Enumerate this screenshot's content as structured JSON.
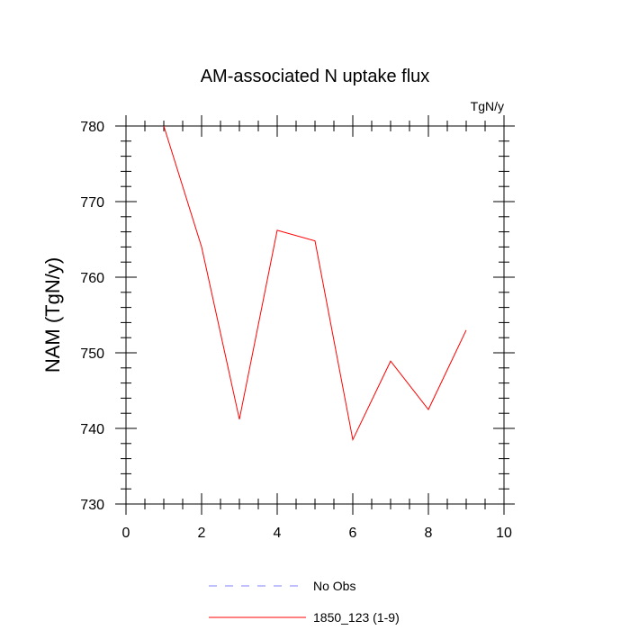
{
  "chart_data": {
    "type": "line",
    "title": "AM-associated N uptake flux",
    "units_label": "TgN/y",
    "xlabel": "",
    "ylabel": "NAM  (TgN/y)",
    "xlim": [
      0,
      10
    ],
    "ylim": [
      730,
      780
    ],
    "x_ticks": [
      "0",
      "2",
      "4",
      "6",
      "8",
      "10"
    ],
    "y_ticks": [
      "730",
      "740",
      "750",
      "760",
      "770",
      "780"
    ],
    "grid": false,
    "legend_position": "bottom-center",
    "series": [
      {
        "name": "1850_123 (1-9)",
        "color": "#ff0000",
        "line_style": "solid",
        "x": [
          1,
          2,
          3,
          4,
          5,
          6,
          7,
          8,
          9
        ],
        "y": [
          780.0,
          764.0,
          741.2,
          766.2,
          764.8,
          738.5,
          748.9,
          742.5,
          753.0
        ]
      }
    ],
    "legend": [
      {
        "label": "No Obs",
        "color": "#8080ff",
        "line_style": "dashed"
      },
      {
        "label": "1850_123 (1-9)",
        "color": "#ff0000",
        "line_style": "solid"
      }
    ]
  }
}
